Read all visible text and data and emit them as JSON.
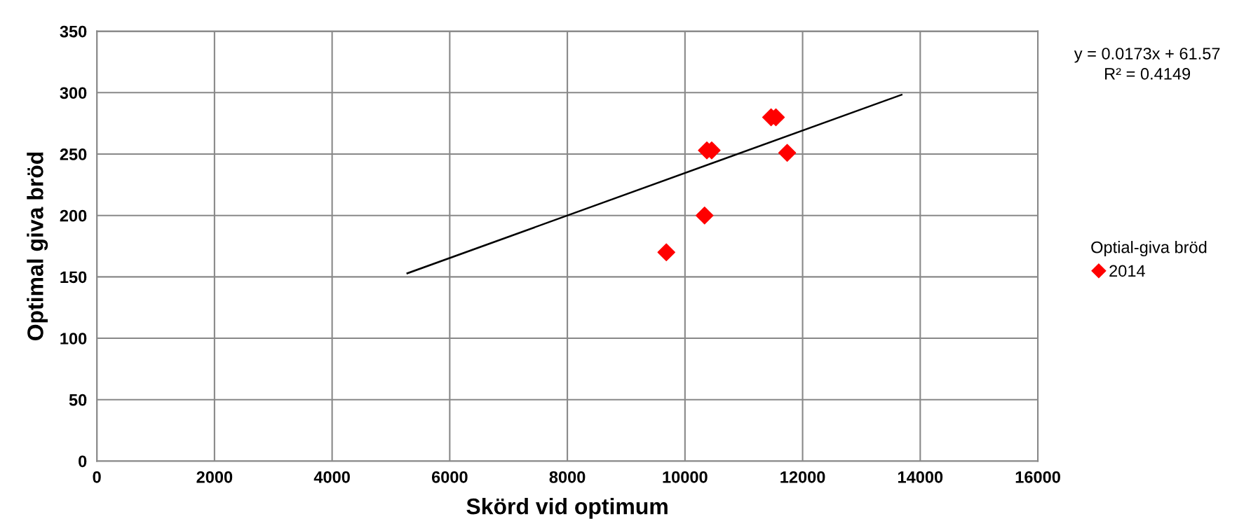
{
  "chart_data": {
    "type": "scatter",
    "xlabel": "Skörd vid optimum",
    "ylabel": "Optimal giva bröd",
    "legend_title": "Optial-giva bröd",
    "xlim": [
      0,
      16000
    ],
    "xticks": [
      0,
      2000,
      4000,
      6000,
      8000,
      10000,
      12000,
      14000,
      16000
    ],
    "ylim": [
      0,
      350
    ],
    "yticks": [
      0,
      50,
      100,
      150,
      200,
      250,
      300,
      350
    ],
    "grid": true,
    "legend": "right",
    "annotations": [
      "y = 0.0173x + 61.57\nR² = 0.4149"
    ],
    "series": [
      {
        "name": "2014",
        "marker": "diamond",
        "color": "#ff0000",
        "x": [
          9683,
          10333,
          10372,
          10454,
          11464,
          11546,
          11738
        ],
        "values": [
          170,
          200,
          253,
          253,
          280,
          280,
          251
        ]
      },
      {
        "type": "line",
        "color": "#000000",
        "x": [
          5279,
          13683
        ],
        "values": [
          152.9,
          298.3
        ]
      }
    ]
  }
}
